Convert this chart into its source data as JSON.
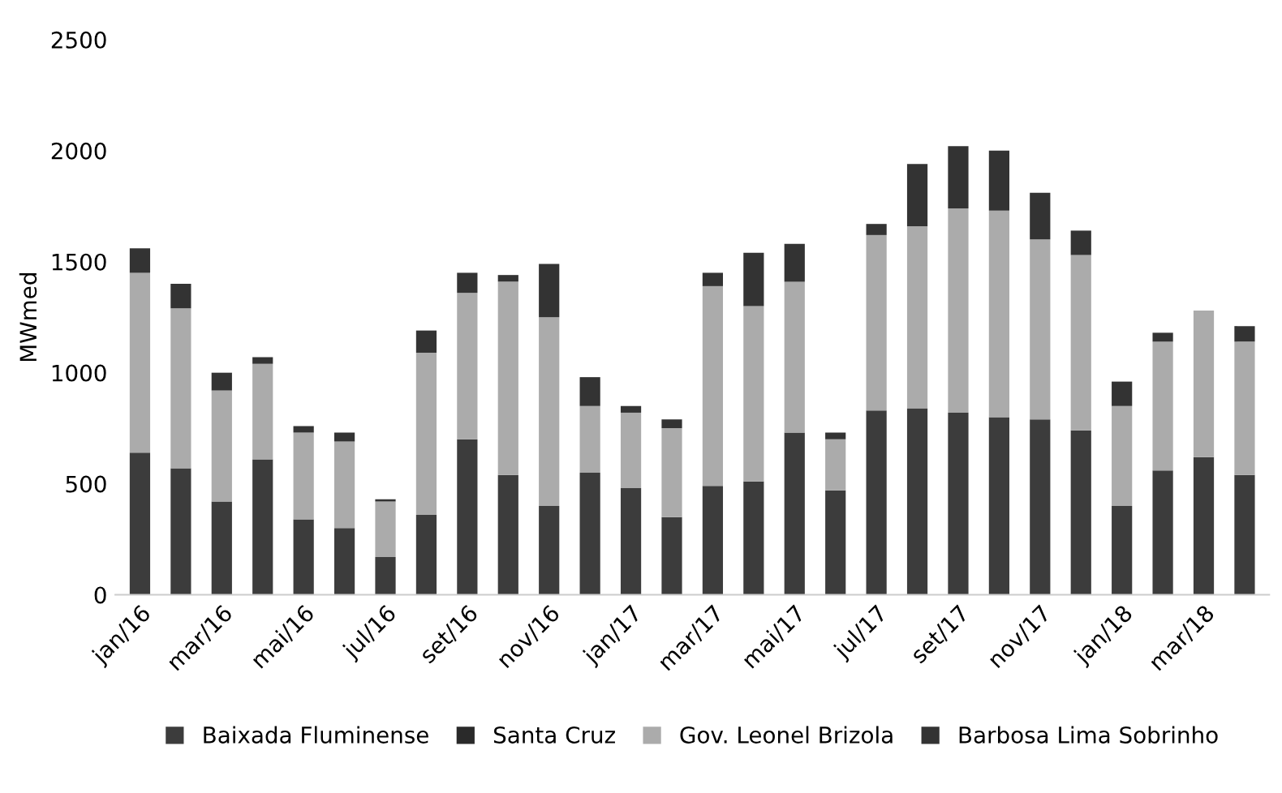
{
  "chart_data": {
    "type": "bar",
    "stacked": true,
    "ylabel": "MWmed",
    "categories": [
      "jan/16",
      null,
      "mar/16",
      null,
      "mai/16",
      null,
      "jul/16",
      null,
      "set/16",
      null,
      "nov/16",
      null,
      "jan/17",
      null,
      "mar/17",
      null,
      "mai/17",
      null,
      "jul/17",
      null,
      "set/17",
      null,
      "nov/17",
      null,
      "jan/18",
      null,
      "mar/18",
      null
    ],
    "series": [
      {
        "name": "Baixada Fluminense",
        "color": "#3c3c3c",
        "values": [
          640,
          570,
          420,
          610,
          340,
          300,
          170,
          360,
          700,
          540,
          400,
          550,
          480,
          350,
          490,
          510,
          730,
          470,
          830,
          840,
          820,
          800,
          790,
          740,
          400,
          560,
          620,
          540
        ]
      },
      {
        "name": "Santa Cruz",
        "color": "#2a2a2a",
        "values": [
          null,
          null,
          null,
          null,
          null,
          null,
          null,
          null,
          null,
          null,
          null,
          null,
          null,
          null,
          null,
          null,
          null,
          null,
          null,
          null,
          null,
          null,
          null,
          null,
          null,
          null,
          null,
          null
        ]
      },
      {
        "name": "Gov. Leonel Brizola",
        "color": "#ababab",
        "values": [
          810,
          720,
          500,
          430,
          390,
          390,
          250,
          730,
          660,
          870,
          850,
          300,
          340,
          400,
          900,
          790,
          680,
          230,
          790,
          820,
          920,
          930,
          810,
          790,
          450,
          580,
          660,
          600
        ]
      },
      {
        "name": "Barbosa Lima Sobrinho",
        "color": "#333333",
        "values": [
          110,
          110,
          80,
          30,
          30,
          40,
          10,
          100,
          90,
          30,
          240,
          130,
          30,
          40,
          60,
          240,
          170,
          30,
          50,
          280,
          280,
          270,
          210,
          110,
          110,
          40,
          0,
          70
        ]
      }
    ],
    "ylim": [
      0,
      2500
    ],
    "yticks": [
      0,
      500,
      1000,
      1500,
      2000,
      2500
    ],
    "grid": false,
    "legend": "bottom"
  }
}
